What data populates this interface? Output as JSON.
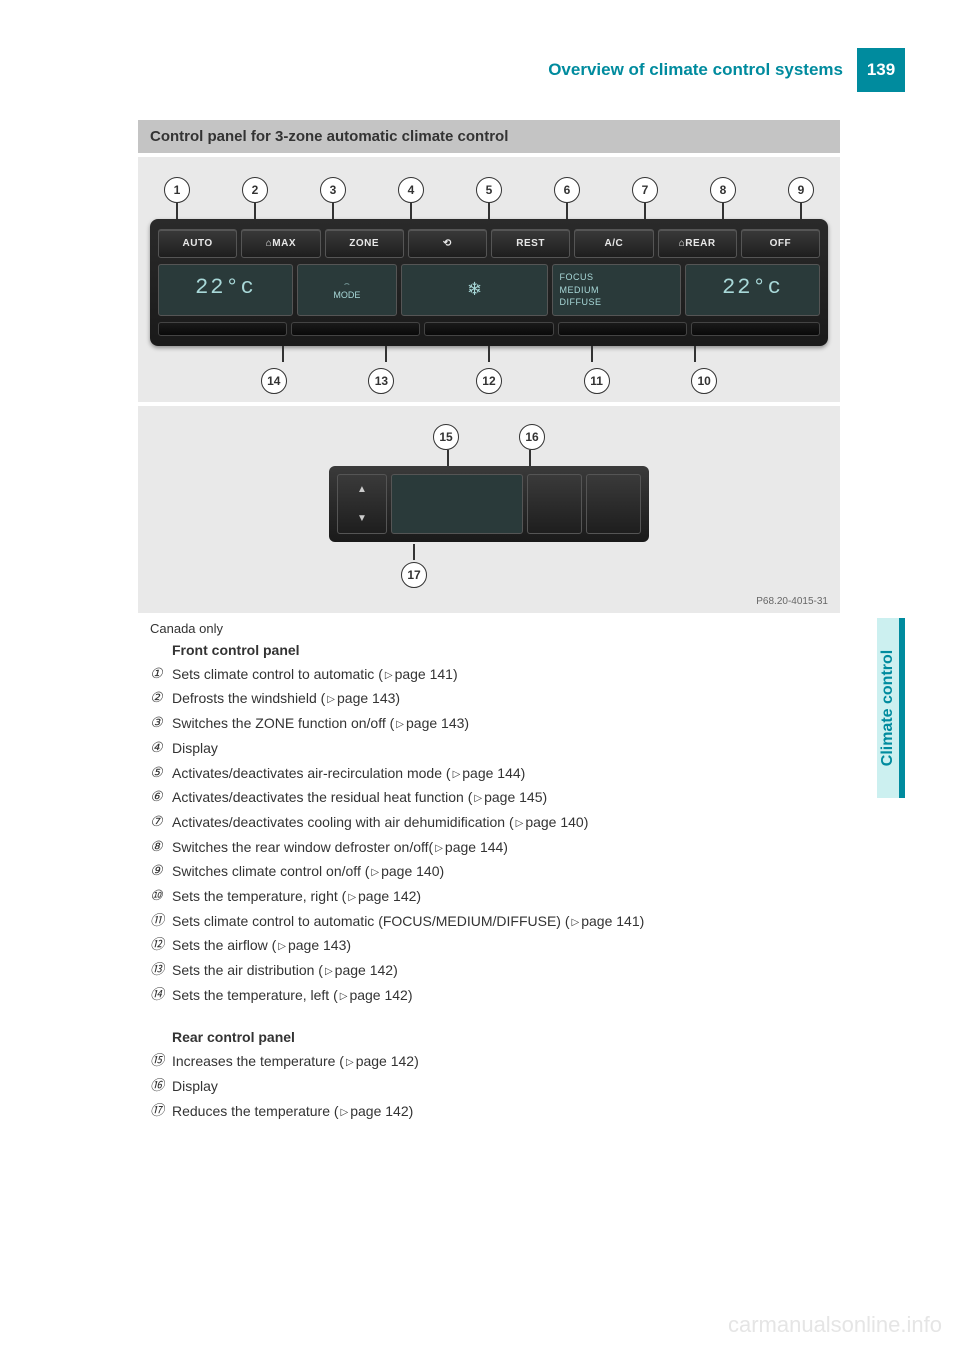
{
  "header": {
    "title": "Overview of climate control systems",
    "page_number": "139"
  },
  "side_tab": "Climate control",
  "section_heading": "Control panel for 3-zone automatic climate control",
  "figure": {
    "top_callouts": [
      "1",
      "2",
      "3",
      "4",
      "5",
      "6",
      "7",
      "8",
      "9"
    ],
    "bottom_callouts": [
      "14",
      "13",
      "12",
      "11",
      "10"
    ],
    "rear_top_callouts": [
      "15",
      "16"
    ],
    "rear_bottom_callout": "17",
    "buttons_top": [
      "AUTO",
      "⌂MAX",
      "ZONE",
      "⟲",
      "REST",
      "A/C",
      "⌂REAR",
      "OFF"
    ],
    "left_temp": "22°c",
    "right_temp": "22°c",
    "mode_label_top": "⌢",
    "mode_label_bottom": "MODE",
    "focus_lines": [
      "FOCUS",
      "MEDIUM",
      "DIFFUSE"
    ],
    "code": "P68.20-4015-31"
  },
  "caption": "Canada only",
  "front_heading": "Front control panel",
  "front_items": [
    {
      "n": "①",
      "text": "Sets climate control to automatic (",
      "page": "page 141)"
    },
    {
      "n": "②",
      "text": "Defrosts the windshield (",
      "page": "page 143)"
    },
    {
      "n": "③",
      "text": "Switches the ZONE function on/off (",
      "page": "page 143)"
    },
    {
      "n": "④",
      "text": "Display",
      "page": ""
    },
    {
      "n": "⑤",
      "text": "Activates/deactivates air-recirculation mode (",
      "page": "page 144)"
    },
    {
      "n": "⑥",
      "text": "Activates/deactivates the residual heat function (",
      "page": "page 145)"
    },
    {
      "n": "⑦",
      "text": "Activates/deactivates cooling with air dehumidification (",
      "page": "page 140)"
    },
    {
      "n": "⑧",
      "text": "Switches the rear window defroster on/off(",
      "page": "page 144)"
    },
    {
      "n": "⑨",
      "text": "Switches climate control on/off (",
      "page": "page 140)"
    },
    {
      "n": "⑩",
      "text": "Sets the temperature, right (",
      "page": "page 142)"
    },
    {
      "n": "⑪",
      "text": "Sets climate control to automatic (FOCUS/MEDIUM/DIFFUSE) (",
      "page": "page 141)"
    },
    {
      "n": "⑫",
      "text": "Sets the airflow (",
      "page": "page 143)"
    },
    {
      "n": "⑬",
      "text": "Sets the air distribution (",
      "page": "page 142)"
    },
    {
      "n": "⑭",
      "text": "Sets the temperature, left (",
      "page": "page 142)"
    }
  ],
  "rear_heading": "Rear control panel",
  "rear_items": [
    {
      "n": "⑮",
      "text": "Increases the temperature (",
      "page": "page 142)"
    },
    {
      "n": "⑯",
      "text": "Display",
      "page": ""
    },
    {
      "n": "⑰",
      "text": "Reduces the temperature (",
      "page": "page 142)"
    }
  ],
  "watermark": "carmanualsonline.info",
  "colors": {
    "accent": "#008b9e",
    "section_bg": "#c4c4c4",
    "figure_bg": "#e9e9e9"
  }
}
